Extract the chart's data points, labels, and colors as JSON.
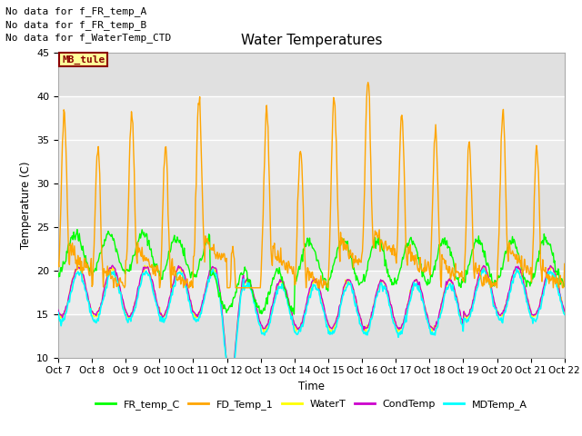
{
  "title": "Water Temperatures",
  "ylabel": "Temperature (C)",
  "xlabel": "Time",
  "xlim": [
    0,
    15
  ],
  "ylim": [
    10,
    45
  ],
  "yticks": [
    10,
    15,
    20,
    25,
    30,
    35,
    40,
    45
  ],
  "xtick_labels": [
    "Oct 7",
    "Oct 8",
    "Oct 9",
    "Oct 10",
    "Oct 11",
    "Oct 12",
    "Oct 13",
    "Oct 14",
    "Oct 15",
    "Oct 16",
    "Oct 17",
    "Oct 18",
    "Oct 19",
    "Oct 20",
    "Oct 21",
    "Oct 22"
  ],
  "no_data_texts": [
    "No data for f_FR_temp_A",
    "No data for f_FR_temp_B",
    "No data for f_WaterTemp_CTD"
  ],
  "mb_tule_label": "MB_tule",
  "legend_entries": [
    {
      "label": "FR_temp_C",
      "color": "#00ff00"
    },
    {
      "label": "FD_Temp_1",
      "color": "#ffa500"
    },
    {
      "label": "WaterT",
      "color": "#ffff00"
    },
    {
      "label": "CondTemp",
      "color": "#cc00cc"
    },
    {
      "label": "MDTemp_A",
      "color": "#00ffff"
    }
  ],
  "background_color": "#ffffff",
  "plot_bg_color": "#f5f5f5",
  "grid_color": "#ffffff",
  "band1": [
    10,
    15
  ],
  "band2": [
    15,
    20
  ],
  "band3": [
    20,
    30
  ],
  "band4": [
    30,
    40
  ],
  "band5": [
    40,
    45
  ],
  "band1_color": "#e8e8e8",
  "band2_color": "#d8d8d8",
  "band3_color": "#e8e8e8",
  "band4_color": "#d8d8d8",
  "band5_color": "#e8e8e8"
}
